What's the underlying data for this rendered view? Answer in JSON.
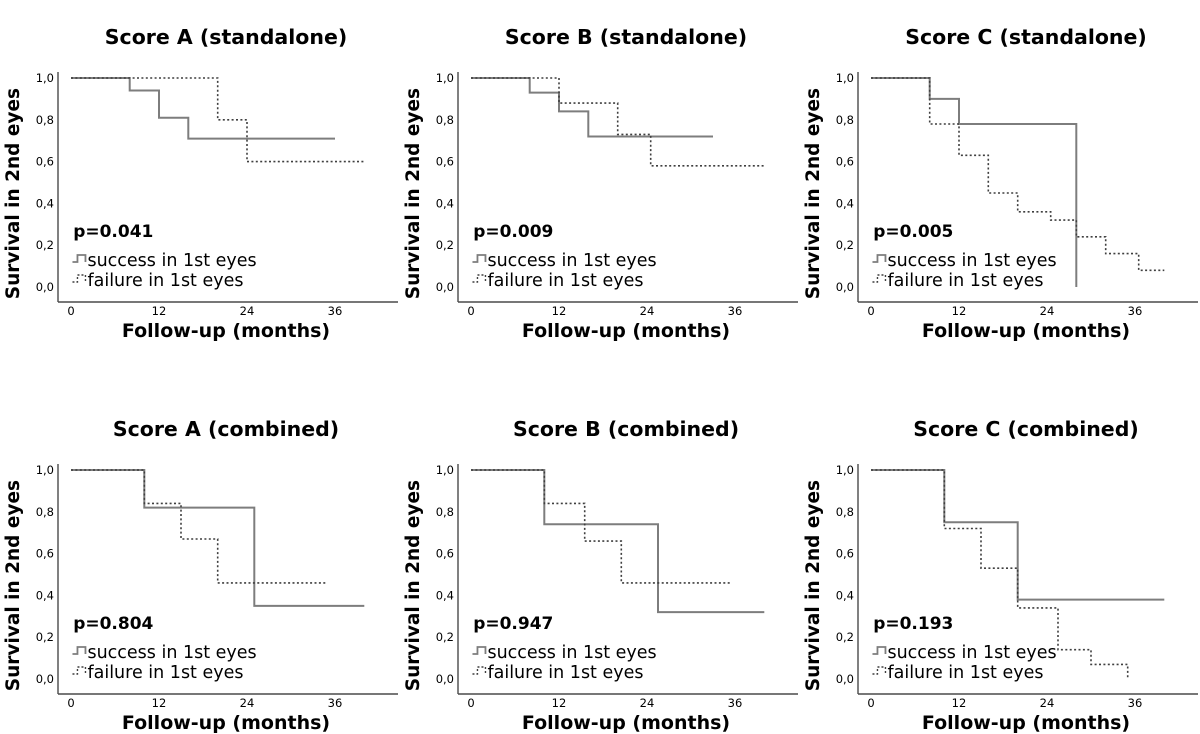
{
  "figure": {
    "background": "#ffffff",
    "colors": {
      "success_line": "#7d7d7d",
      "failure_line": "#3f3f3f",
      "axis": "#4a4a4a",
      "text": "#000000"
    },
    "legend": {
      "success_label": "success in 1st eyes",
      "failure_label": "failure in 1st eyes",
      "position": "lower-left-inside"
    }
  },
  "chart_data": [
    {
      "id": "score-a-standalone",
      "type": "line",
      "subtype": "kaplan-meier-step",
      "title": "Score A (standalone)",
      "p_value": "p=0.041",
      "xlabel": "Follow-up (months)",
      "ylabel": "Survival in 2nd eyes",
      "xlim": [
        0,
        42
      ],
      "ylim": [
        0,
        1
      ],
      "xticks": [
        0,
        12,
        24,
        36
      ],
      "yticks": [
        0,
        0.2,
        0.4,
        0.6,
        0.8,
        1
      ],
      "ytick_labels": [
        "0,0",
        "0,2",
        "0,4",
        "0,6",
        "0,8",
        "1,0"
      ],
      "grid": false,
      "series": [
        {
          "name": "success in 1st eyes",
          "line_style": "solid",
          "points": [
            [
              0,
              1
            ],
            [
              8,
              1
            ],
            [
              8,
              0.94
            ],
            [
              12,
              0.94
            ],
            [
              12,
              0.81
            ],
            [
              16,
              0.81
            ],
            [
              16,
              0.71
            ],
            [
              36,
              0.71
            ]
          ]
        },
        {
          "name": "failure in 1st eyes",
          "line_style": "dotted",
          "points": [
            [
              0,
              1
            ],
            [
              20,
              1
            ],
            [
              20,
              0.8
            ],
            [
              24,
              0.8
            ],
            [
              24,
              0.6
            ],
            [
              40,
              0.6
            ]
          ]
        }
      ]
    },
    {
      "id": "score-b-standalone",
      "type": "line",
      "subtype": "kaplan-meier-step",
      "title": "Score B (standalone)",
      "p_value": "p=0.009",
      "xlabel": "Follow-up (months)",
      "ylabel": "Survival in 2nd eyes",
      "xlim": [
        0,
        42
      ],
      "ylim": [
        0,
        1
      ],
      "xticks": [
        0,
        12,
        24,
        36
      ],
      "yticks": [
        0,
        0.2,
        0.4,
        0.6,
        0.8,
        1
      ],
      "ytick_labels": [
        "0,0",
        "0,2",
        "0,4",
        "0,6",
        "0,8",
        "1,0"
      ],
      "grid": false,
      "series": [
        {
          "name": "success in 1st eyes",
          "line_style": "solid",
          "points": [
            [
              0,
              1
            ],
            [
              8,
              1
            ],
            [
              8,
              0.93
            ],
            [
              12,
              0.93
            ],
            [
              12,
              0.84
            ],
            [
              16,
              0.84
            ],
            [
              16,
              0.72
            ],
            [
              33,
              0.72
            ]
          ]
        },
        {
          "name": "failure in 1st eyes",
          "line_style": "dotted",
          "points": [
            [
              0,
              1
            ],
            [
              12,
              1
            ],
            [
              12,
              0.88
            ],
            [
              20,
              0.88
            ],
            [
              20,
              0.73
            ],
            [
              24.5,
              0.73
            ],
            [
              24.5,
              0.58
            ],
            [
              40,
              0.58
            ]
          ]
        }
      ]
    },
    {
      "id": "score-c-standalone",
      "type": "line",
      "subtype": "kaplan-meier-step",
      "title": "Score C (standalone)",
      "p_value": "p=0.005",
      "xlabel": "Follow-up (months)",
      "ylabel": "Survival in 2nd eyes",
      "xlim": [
        0,
        42
      ],
      "ylim": [
        0,
        1
      ],
      "xticks": [
        0,
        12,
        24,
        36
      ],
      "yticks": [
        0,
        0.2,
        0.4,
        0.6,
        0.8,
        1
      ],
      "ytick_labels": [
        "0,0",
        "0,2",
        "0,4",
        "0,6",
        "0,8",
        "1,0"
      ],
      "grid": false,
      "series": [
        {
          "name": "success in 1st eyes",
          "line_style": "solid",
          "points": [
            [
              0,
              1
            ],
            [
              8,
              1
            ],
            [
              8,
              0.9
            ],
            [
              12,
              0.9
            ],
            [
              12,
              0.78
            ],
            [
              28,
              0.78
            ],
            [
              28,
              0
            ]
          ]
        },
        {
          "name": "failure in 1st eyes",
          "line_style": "dotted",
          "points": [
            [
              0,
              1
            ],
            [
              8,
              1
            ],
            [
              8,
              0.78
            ],
            [
              12,
              0.78
            ],
            [
              12,
              0.63
            ],
            [
              16,
              0.63
            ],
            [
              16,
              0.45
            ],
            [
              20,
              0.45
            ],
            [
              20,
              0.36
            ],
            [
              24.5,
              0.36
            ],
            [
              24.5,
              0.32
            ],
            [
              28,
              0.32
            ],
            [
              28,
              0.24
            ],
            [
              32,
              0.24
            ],
            [
              32,
              0.16
            ],
            [
              36.5,
              0.16
            ],
            [
              36.5,
              0.08
            ],
            [
              40,
              0.08
            ]
          ]
        }
      ]
    },
    {
      "id": "score-a-combined",
      "type": "line",
      "subtype": "kaplan-meier-step",
      "title": "Score A (combined)",
      "p_value": "p=0.804",
      "xlabel": "Follow-up (months)",
      "ylabel": "Survival in 2nd eyes",
      "xlim": [
        0,
        42
      ],
      "ylim": [
        0,
        1
      ],
      "xticks": [
        0,
        12,
        24,
        36
      ],
      "yticks": [
        0,
        0.2,
        0.4,
        0.6,
        0.8,
        1
      ],
      "ytick_labels": [
        "0,0",
        "0,2",
        "0,4",
        "0,6",
        "0,8",
        "1,0"
      ],
      "grid": false,
      "series": [
        {
          "name": "success in 1st eyes",
          "line_style": "solid",
          "points": [
            [
              0,
              1
            ],
            [
              10,
              1
            ],
            [
              10,
              0.82
            ],
            [
              25,
              0.82
            ],
            [
              25,
              0.35
            ],
            [
              40,
              0.35
            ]
          ]
        },
        {
          "name": "failure in 1st eyes",
          "line_style": "dotted",
          "points": [
            [
              0,
              1
            ],
            [
              10,
              1
            ],
            [
              10,
              0.84
            ],
            [
              15,
              0.84
            ],
            [
              15,
              0.67
            ],
            [
              20,
              0.67
            ],
            [
              20,
              0.46
            ],
            [
              35,
              0.46
            ]
          ]
        }
      ]
    },
    {
      "id": "score-b-combined",
      "type": "line",
      "subtype": "kaplan-meier-step",
      "title": "Score B (combined)",
      "p_value": "p=0.947",
      "xlabel": "Follow-up (months)",
      "ylabel": "Survival in 2nd eyes",
      "xlim": [
        0,
        42
      ],
      "ylim": [
        0,
        1
      ],
      "xticks": [
        0,
        12,
        24,
        36
      ],
      "yticks": [
        0,
        0.2,
        0.4,
        0.6,
        0.8,
        1
      ],
      "ytick_labels": [
        "0,0",
        "0,2",
        "0,4",
        "0,6",
        "0,8",
        "1,0"
      ],
      "grid": false,
      "series": [
        {
          "name": "success in 1st eyes",
          "line_style": "solid",
          "points": [
            [
              0,
              1
            ],
            [
              10,
              1
            ],
            [
              10,
              0.74
            ],
            [
              25.5,
              0.74
            ],
            [
              25.5,
              0.32
            ],
            [
              40,
              0.32
            ]
          ]
        },
        {
          "name": "failure in 1st eyes",
          "line_style": "dotted",
          "points": [
            [
              0,
              1
            ],
            [
              10,
              1
            ],
            [
              10,
              0.84
            ],
            [
              15.5,
              0.84
            ],
            [
              15.5,
              0.66
            ],
            [
              20.5,
              0.66
            ],
            [
              20.5,
              0.46
            ],
            [
              35.5,
              0.46
            ]
          ]
        }
      ]
    },
    {
      "id": "score-c-combined",
      "type": "line",
      "subtype": "kaplan-meier-step",
      "title": "Score C (combined)",
      "p_value": "p=0.193",
      "xlabel": "Follow-up (months)",
      "ylabel": "Survival in 2nd eyes",
      "xlim": [
        0,
        42
      ],
      "ylim": [
        0,
        1
      ],
      "xticks": [
        0,
        12,
        24,
        36
      ],
      "yticks": [
        0,
        0.2,
        0.4,
        0.6,
        0.8,
        1
      ],
      "ytick_labels": [
        "0,0",
        "0,2",
        "0,4",
        "0,6",
        "0,8",
        "1,0"
      ],
      "grid": false,
      "series": [
        {
          "name": "success in 1st eyes",
          "line_style": "solid",
          "points": [
            [
              0,
              1
            ],
            [
              10,
              1
            ],
            [
              10,
              0.75
            ],
            [
              20,
              0.75
            ],
            [
              20,
              0.38
            ],
            [
              40,
              0.38
            ]
          ]
        },
        {
          "name": "failure in 1st eyes",
          "line_style": "dotted",
          "points": [
            [
              0,
              1
            ],
            [
              10,
              1
            ],
            [
              10,
              0.72
            ],
            [
              15,
              0.72
            ],
            [
              15,
              0.53
            ],
            [
              20,
              0.53
            ],
            [
              20,
              0.34
            ],
            [
              25.5,
              0.34
            ],
            [
              25.5,
              0.14
            ],
            [
              30,
              0.14
            ],
            [
              30,
              0.07
            ],
            [
              35,
              0.07
            ],
            [
              35,
              0
            ]
          ]
        }
      ]
    }
  ]
}
